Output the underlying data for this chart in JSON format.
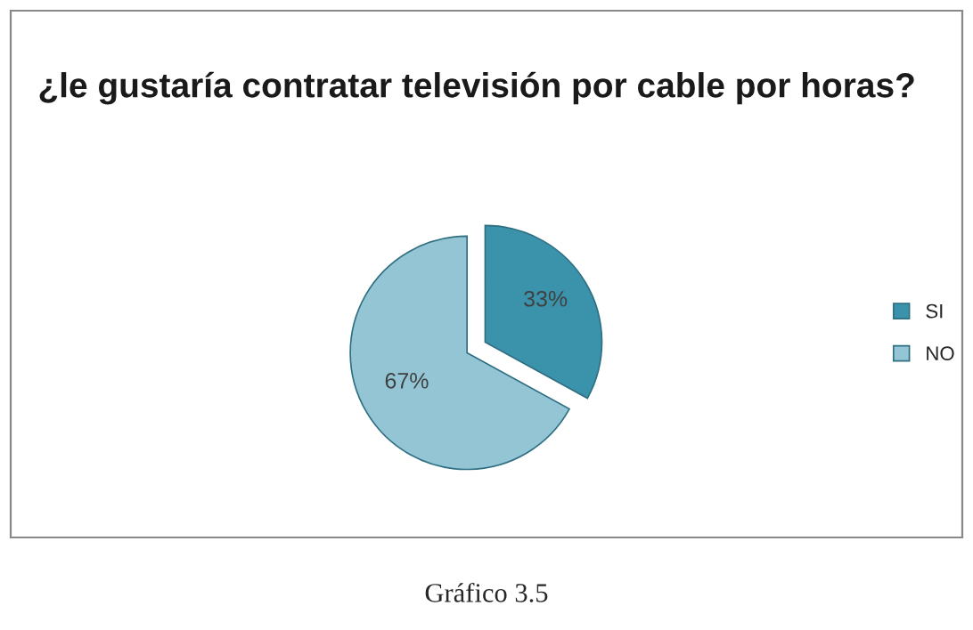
{
  "chart_data": {
    "type": "pie",
    "title": "¿le gustaría contratar televisión por cable por horas?",
    "categories": [
      "SI",
      "NO"
    ],
    "values": [
      33,
      67
    ],
    "colors": [
      "#3b93ab",
      "#93c5d5"
    ],
    "value_labels": [
      "33%",
      "67%"
    ],
    "legend": "right",
    "annotations": [
      "Gráfico 3.5"
    ]
  }
}
